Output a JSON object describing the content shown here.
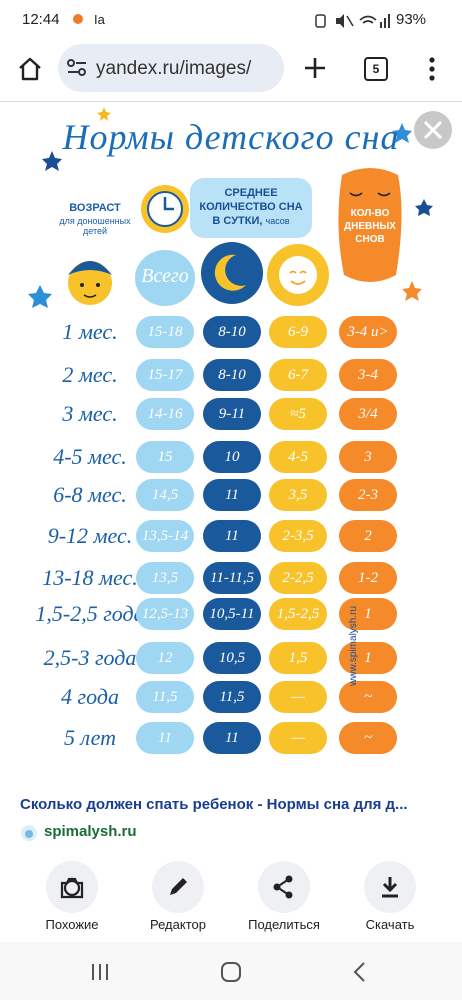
{
  "status_bar": {
    "time": "12:44",
    "carrier": "Ia",
    "battery": "93%"
  },
  "browser": {
    "url": "yandex.ru/images/",
    "tab_count": "5"
  },
  "image": {
    "title": "Нормы детского сна",
    "age_header": "ВОЗРАСТ",
    "age_subheader": "для доношенных детей",
    "sleep_header": "СРЕДНЕЕ КОЛИЧЕСТВО СНА В СУТКИ,",
    "sleep_unit": "часов",
    "naps_header": "КОЛ-ВО ДНЕВНЫХ СНОВ",
    "total_label": "Всего",
    "credit": "www.spimalysh.ru",
    "rows": [
      {
        "age": "1 мес.",
        "total": "15-18",
        "night": "8-10",
        "day": "6-9",
        "naps": "3-4 и>"
      },
      {
        "age": "2 мес.",
        "total": "15-17",
        "night": "8-10",
        "day": "6-7",
        "naps": "3-4"
      },
      {
        "age": "3 мес.",
        "total": "14-16",
        "night": "9-11",
        "day": "≈5",
        "naps": "3/4"
      },
      {
        "age": "4-5 мес.",
        "total": "15",
        "night": "10",
        "day": "4-5",
        "naps": "3"
      },
      {
        "age": "6-8 мес.",
        "total": "14,5",
        "night": "11",
        "day": "3,5",
        "naps": "2-3"
      },
      {
        "age": "9-12 мес.",
        "total": "13,5-14",
        "night": "11",
        "day": "2-3,5",
        "naps": "2"
      },
      {
        "age": "13-18 мес.",
        "total": "13,5",
        "night": "11-11,5",
        "day": "2-2,5",
        "naps": "1-2"
      },
      {
        "age": "1,5-2,5 года",
        "total": "12,5-13",
        "night": "10,5-11",
        "day": "1,5-2,5",
        "naps": "1"
      },
      {
        "age": "2,5-3 года",
        "total": "12",
        "night": "10,5",
        "day": "1,5",
        "naps": "1"
      },
      {
        "age": "4 года",
        "total": "11,5",
        "night": "11,5",
        "day": "—",
        "naps": "~"
      },
      {
        "age": "5 лет",
        "total": "11",
        "night": "11",
        "day": "—",
        "naps": "~"
      }
    ]
  },
  "result": {
    "caption": "Сколько должен спать ребенок - Нормы сна для д...",
    "source": "spimalysh.ru"
  },
  "actions": [
    {
      "label": "Похожие"
    },
    {
      "label": "Редактор"
    },
    {
      "label": "Поделиться"
    },
    {
      "label": "Скачать"
    }
  ]
}
